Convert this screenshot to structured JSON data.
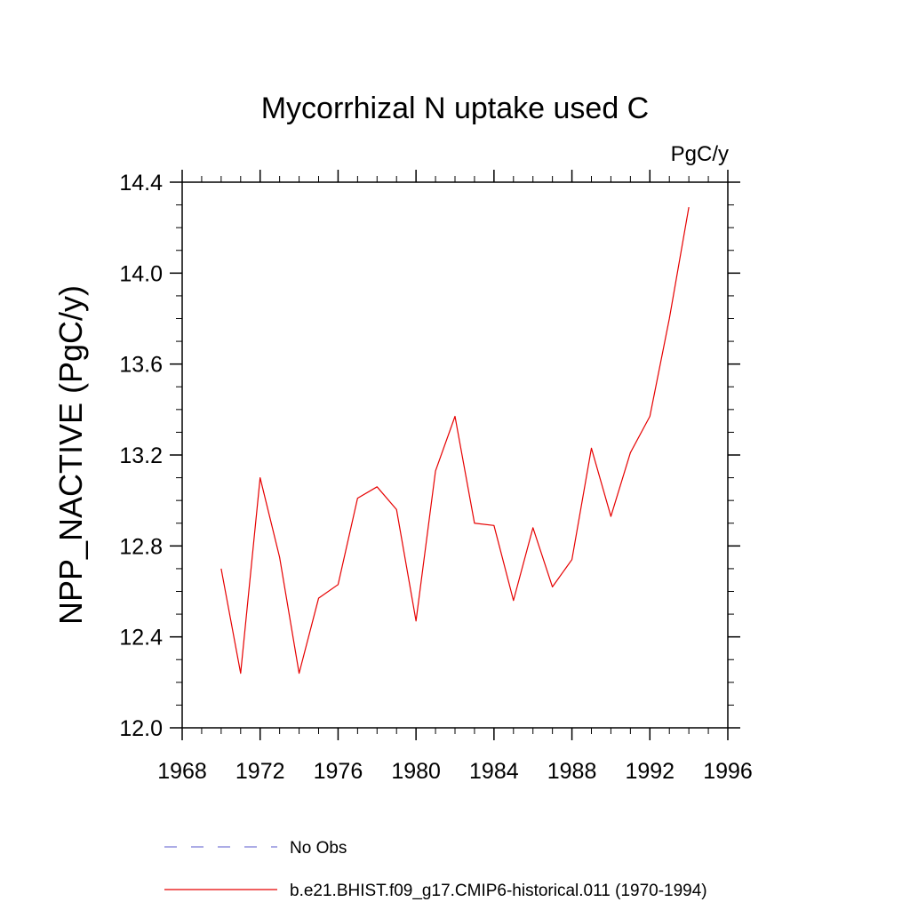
{
  "chart_data": {
    "type": "line",
    "title": "Mycorrhizal N uptake used C",
    "units_label": "PgC/y",
    "ylabel": "NPP_NACTIVE  (PgC/y)",
    "xlabel": "",
    "xlim": [
      1968,
      1996
    ],
    "ylim": [
      12.0,
      14.4
    ],
    "x_ticks": [
      1968,
      1972,
      1976,
      1980,
      1984,
      1988,
      1992,
      1996
    ],
    "x_tick_labels": [
      "1968",
      "1972",
      "1976",
      "1980",
      "1984",
      "1988",
      "1992",
      "1996"
    ],
    "y_ticks": [
      12.0,
      12.4,
      12.8,
      13.2,
      13.6,
      14.0,
      14.4
    ],
    "y_tick_labels": [
      "12.0",
      "12.4",
      "12.8",
      "13.2",
      "13.6",
      "14.0",
      "14.4"
    ],
    "grid": false,
    "legend_position": "bottom",
    "series": [
      {
        "name": "No Obs",
        "color": "#7b7bd6",
        "dash": "dashed",
        "x": [],
        "y": []
      },
      {
        "name": "b.e21.BHIST.f09_g17.CMIP6-historical.011 (1970-1994)",
        "color": "#e60000",
        "dash": "solid",
        "x": [
          1970,
          1971,
          1972,
          1973,
          1974,
          1975,
          1976,
          1977,
          1978,
          1979,
          1980,
          1981,
          1982,
          1983,
          1984,
          1985,
          1986,
          1987,
          1988,
          1989,
          1990,
          1991,
          1992,
          1993,
          1994
        ],
        "y": [
          12.7,
          12.24,
          13.1,
          12.75,
          12.24,
          12.57,
          12.63,
          13.01,
          13.06,
          12.96,
          12.47,
          13.13,
          13.37,
          12.9,
          12.89,
          12.56,
          12.88,
          12.62,
          12.74,
          13.23,
          12.93,
          13.21,
          13.37,
          13.8,
          14.29
        ]
      }
    ]
  }
}
